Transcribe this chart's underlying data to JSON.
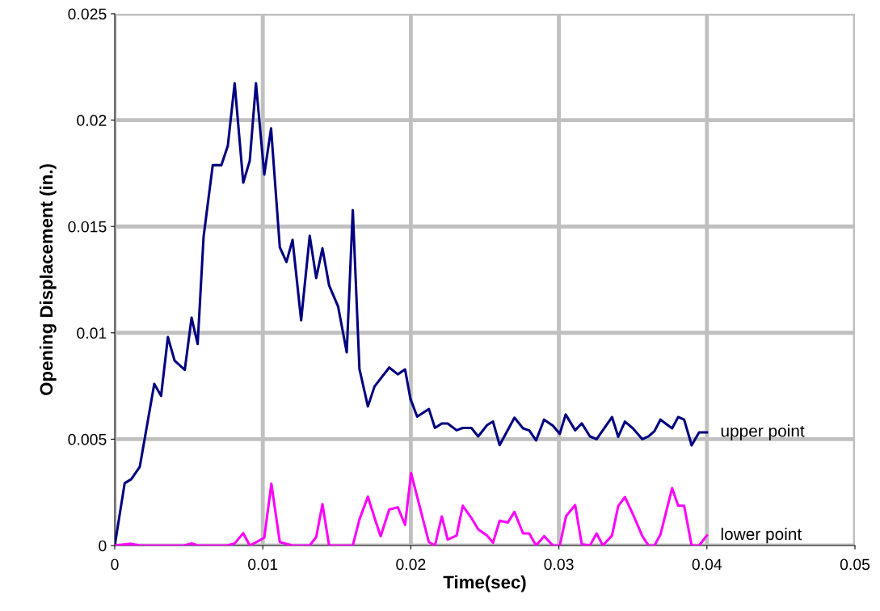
{
  "chart_data": {
    "type": "line",
    "xlabel": "Time(sec)",
    "ylabel": "Opening Displacement (in.)",
    "xlim": [
      0,
      0.05
    ],
    "xticks": [
      0,
      0.01,
      0.02,
      0.03,
      0.04,
      0.05
    ],
    "ylim": [
      0,
      0.025
    ],
    "yticks": [
      0,
      0.005,
      0.01,
      0.015,
      0.02,
      0.025
    ],
    "grid": true,
    "legend": false,
    "marker": "none",
    "line_style": "solid",
    "series": [
      {
        "name": "upper point",
        "color": "#000080",
        "x": [
          0,
          0.00067,
          0.00112,
          0.00169,
          0.00211,
          0.00267,
          0.00313,
          0.00359,
          0.00404,
          0.00473,
          0.00519,
          0.0056,
          0.006,
          0.00662,
          0.0072,
          0.00764,
          0.0081,
          0.00868,
          0.00912,
          0.00954,
          0.0101,
          0.01056,
          0.01115,
          0.0116,
          0.01201,
          0.01259,
          0.01317,
          0.01361,
          0.01403,
          0.01448,
          0.01509,
          0.01567,
          0.01608,
          0.01653,
          0.0171,
          0.01755,
          0.01854,
          0.01912,
          0.01961,
          0.01998,
          0.02043,
          0.02122,
          0.02163,
          0.02209,
          0.02249,
          0.02309,
          0.02351,
          0.02409,
          0.02455,
          0.02515,
          0.02555,
          0.026,
          0.027,
          0.02758,
          0.028,
          0.02846,
          0.029,
          0.0296,
          0.03006,
          0.03046,
          0.0311,
          0.03155,
          0.0321,
          0.03255,
          0.03359,
          0.03401,
          0.03446,
          0.035,
          0.03564,
          0.03606,
          0.03646,
          0.03686,
          0.03765,
          0.03806,
          0.03846,
          0.03897,
          0.03947,
          0.04
        ],
        "values": [
          0,
          0.00293,
          0.00312,
          0.0037,
          0.00537,
          0.0076,
          0.00704,
          0.0098,
          0.0087,
          0.00826,
          0.01071,
          0.00947,
          0.01451,
          0.01788,
          0.01788,
          0.0188,
          0.02173,
          0.01706,
          0.01809,
          0.02173,
          0.01744,
          0.01961,
          0.01402,
          0.01333,
          0.01437,
          0.01059,
          0.01456,
          0.01258,
          0.01397,
          0.01223,
          0.01123,
          0.00908,
          0.01577,
          0.0083,
          0.00654,
          0.00748,
          0.00837,
          0.00805,
          0.00828,
          0.00688,
          0.00606,
          0.00642,
          0.00553,
          0.00574,
          0.00574,
          0.00542,
          0.00553,
          0.00553,
          0.00513,
          0.00566,
          0.00583,
          0.00472,
          0.00601,
          0.00551,
          0.00541,
          0.00494,
          0.00592,
          0.00563,
          0.00525,
          0.00616,
          0.00542,
          0.00574,
          0.00513,
          0.005,
          0.00604,
          0.00511,
          0.00583,
          0.00551,
          0.005,
          0.00513,
          0.00538,
          0.00592,
          0.00551,
          0.00604,
          0.00592,
          0.00471,
          0.00532,
          0.00532
        ]
      },
      {
        "name": "lower point",
        "color": "#ff00ff",
        "x": [
          0,
          0.0011,
          0.0017,
          0.0047,
          0.0052,
          0.0056,
          0.0076,
          0.0081,
          0.00868,
          0.00912,
          0.00954,
          0.0101,
          0.01058,
          0.01115,
          0.01201,
          0.01317,
          0.01361,
          0.01403,
          0.01448,
          0.01608,
          0.01653,
          0.0171,
          0.01755,
          0.01796,
          0.01854,
          0.01912,
          0.01961,
          0.02002,
          0.02122,
          0.02163,
          0.02209,
          0.02249,
          0.02309,
          0.02351,
          0.02409,
          0.02455,
          0.02515,
          0.02555,
          0.026,
          0.02655,
          0.027,
          0.02758,
          0.028,
          0.02846,
          0.029,
          0.0296,
          0.03006,
          0.03049,
          0.0311,
          0.03155,
          0.0321,
          0.03255,
          0.03297,
          0.03359,
          0.03401,
          0.03446,
          0.035,
          0.03564,
          0.03606,
          0.03646,
          0.03686,
          0.03765,
          0.03806,
          0.03846,
          0.03897,
          0.03947,
          0.04
        ],
        "values": [
          0,
          8e-05,
          0,
          0,
          0.0001,
          0,
          0,
          0.0001,
          0.00058,
          0,
          0.00015,
          0.00037,
          0.00291,
          0.00016,
          0,
          0,
          0.0004,
          0.00195,
          0,
          0,
          0.00123,
          0.0023,
          0.0013,
          0.00044,
          0.00169,
          0.0018,
          0.00097,
          0.0034,
          0.00016,
          0,
          0.00137,
          0.00028,
          0.00047,
          0.00187,
          0.0013,
          0.00076,
          0.00047,
          0.00013,
          0.00117,
          0.00108,
          0.00158,
          0.00057,
          0.00057,
          0,
          0.00044,
          0,
          0,
          0.00139,
          0.0019,
          6e-05,
          0,
          0.00057,
          0,
          0.00047,
          0.00186,
          0.00228,
          0.00148,
          0.00044,
          0,
          0,
          0.00051,
          0.0027,
          0.00187,
          0.00187,
          0,
          0,
          0.00047
        ]
      }
    ]
  }
}
